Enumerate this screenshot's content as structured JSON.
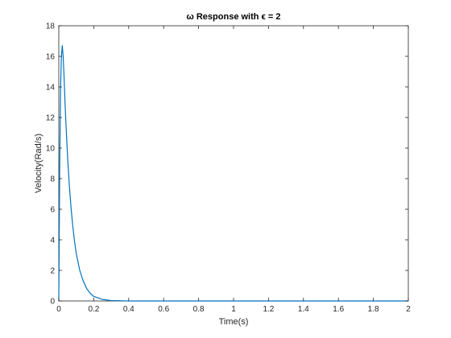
{
  "chart_data": {
    "type": "line",
    "title": "ω Response with ϵ = 2",
    "xlabel": "Time(s)",
    "ylabel": "Velocity(Rad/s)",
    "xlim": [
      0,
      2
    ],
    "ylim": [
      0,
      18
    ],
    "xticks": [
      0,
      0.2,
      0.4,
      0.6,
      0.8,
      1,
      1.2,
      1.4,
      1.6,
      1.8,
      2
    ],
    "xtick_labels": [
      "0",
      "0.2",
      "0.4",
      "0.6",
      "0.8",
      "1",
      "1.2",
      "1.4",
      "1.6",
      "1.8",
      "2"
    ],
    "yticks": [
      0,
      2,
      4,
      6,
      8,
      10,
      12,
      14,
      16,
      18
    ],
    "ytick_labels": [
      "0",
      "2",
      "4",
      "6",
      "8",
      "10",
      "12",
      "14",
      "16",
      "18"
    ],
    "grid": false,
    "box": true,
    "series": [
      {
        "color": "#0072BD",
        "x": [
          0,
          0.005,
          0.01,
          0.015,
          0.02,
          0.025,
          0.03,
          0.035,
          0.04,
          0.05,
          0.06,
          0.07,
          0.08,
          0.09,
          0.1,
          0.12,
          0.14,
          0.16,
          0.18,
          0.2,
          0.25,
          0.3,
          0.4,
          0.5,
          0.7,
          1,
          1.5,
          2
        ],
        "y": [
          0,
          8.5,
          13.8,
          16.0,
          16.7,
          16.0,
          14.7,
          13.2,
          11.8,
          9.5,
          7.6,
          6.1,
          4.9,
          3.9,
          3.1,
          2.0,
          1.3,
          0.8,
          0.5,
          0.3,
          0.1,
          0.03,
          0,
          0,
          0,
          0,
          0,
          0
        ]
      }
    ]
  }
}
